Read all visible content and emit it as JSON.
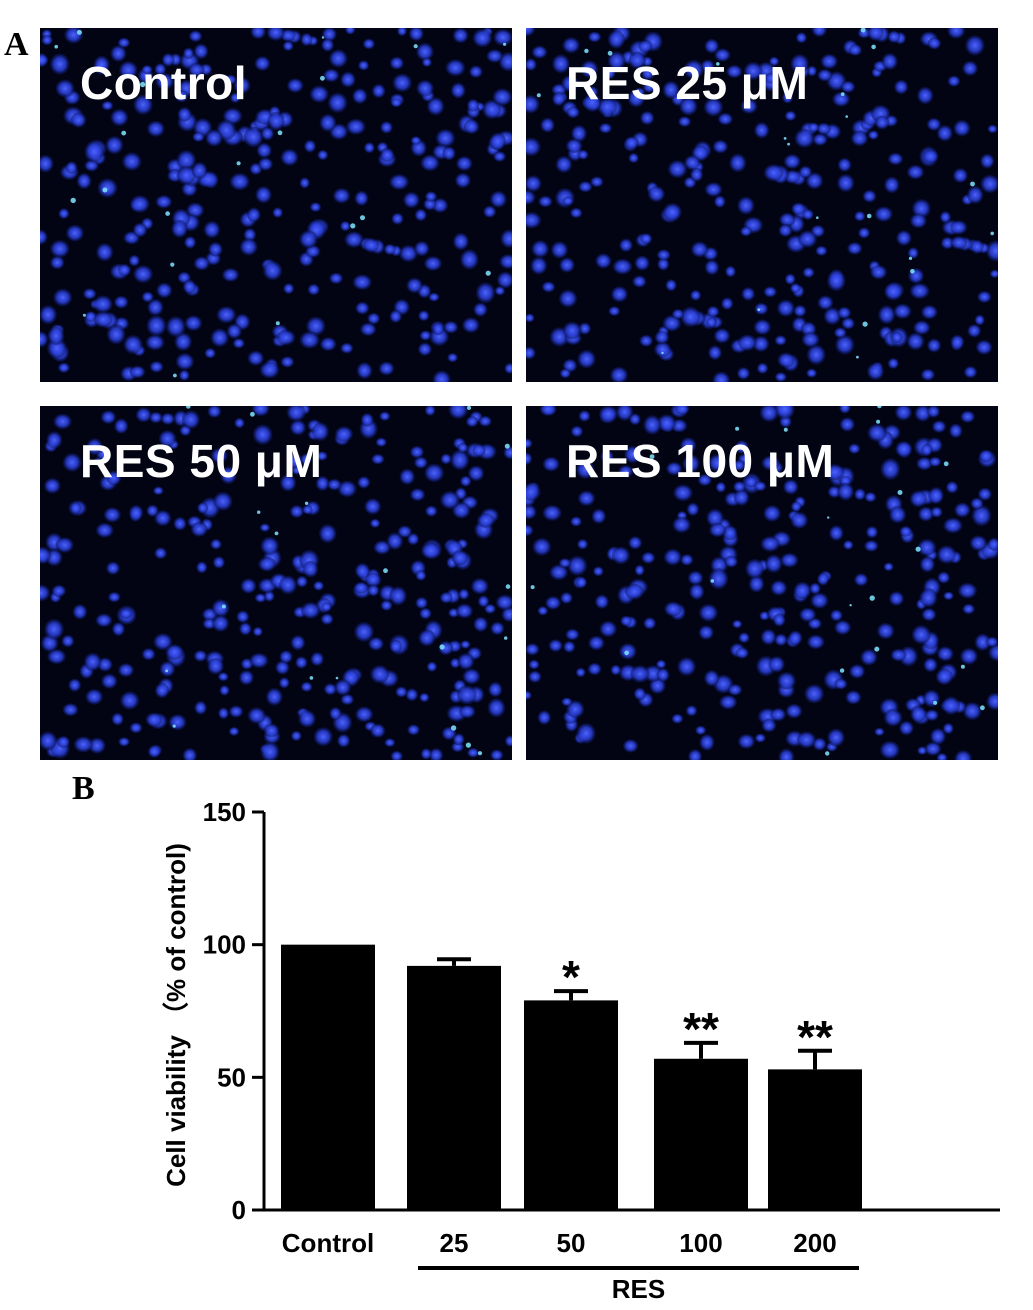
{
  "figure": {
    "panel_a_letter": "A",
    "panel_b_letter": "B"
  },
  "micrographs": [
    {
      "label": "Control",
      "stain_color": "#2a3fd8"
    },
    {
      "label": "RES 25 μM",
      "stain_color": "#2a3fd8"
    },
    {
      "label": "RES 50 μM",
      "stain_color": "#2a3fd8"
    },
    {
      "label": "RES 100 μM",
      "stain_color": "#2a3fd8"
    }
  ],
  "chart_data": {
    "type": "bar",
    "categories": [
      "Control",
      "25",
      "50",
      "100",
      "200"
    ],
    "values": [
      100,
      92,
      79,
      57,
      53
    ],
    "errors": [
      0,
      2.5,
      3.5,
      6,
      7
    ],
    "significance": [
      "",
      "",
      "*",
      "**",
      "**"
    ],
    "ylabel": "Cell viability （% of control)",
    "xlabel": "",
    "group_label": "RES",
    "ylim": [
      0,
      150
    ],
    "yticks": [
      0,
      50,
      100,
      150
    ],
    "bar_color": "#000000",
    "grid": false
  }
}
